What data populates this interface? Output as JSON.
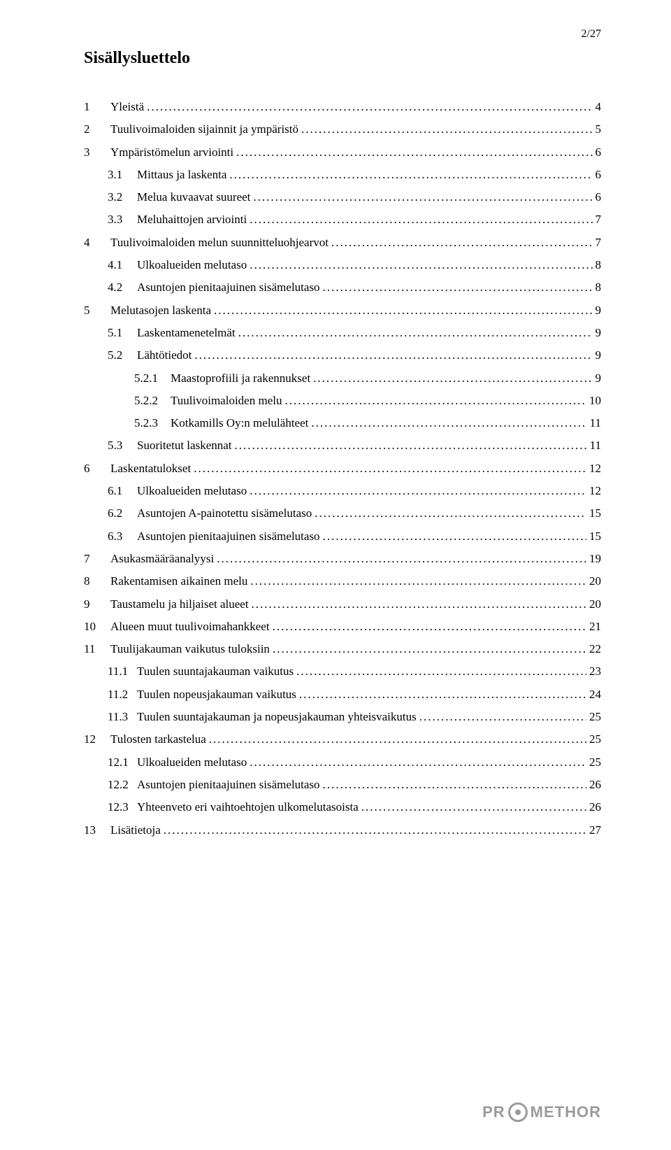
{
  "page_number": "2/27",
  "title": "Sisällysluettelo",
  "logo_text_left": "PR",
  "logo_text_right": "METHOR",
  "toc": [
    {
      "level": 1,
      "num": "1",
      "label": "Yleistä",
      "page": "4"
    },
    {
      "level": 1,
      "num": "2",
      "label": "Tuulivoimaloiden sijainnit ja ympäristö",
      "page": "5"
    },
    {
      "level": 1,
      "num": "3",
      "label": "Ympäristömelun arviointi",
      "page": "6"
    },
    {
      "level": 2,
      "num": "3.1",
      "label": "Mittaus ja laskenta",
      "page": "6"
    },
    {
      "level": 2,
      "num": "3.2",
      "label": "Melua kuvaavat suureet",
      "page": "6"
    },
    {
      "level": 2,
      "num": "3.3",
      "label": "Meluhaittojen arviointi",
      "page": "7"
    },
    {
      "level": 1,
      "num": "4",
      "label": "Tuulivoimaloiden melun suunnitteluohjearvot",
      "page": "7"
    },
    {
      "level": 2,
      "num": "4.1",
      "label": "Ulkoalueiden melutaso",
      "page": "8"
    },
    {
      "level": 2,
      "num": "4.2",
      "label": "Asuntojen pienitaajuinen sisämelutaso",
      "page": "8"
    },
    {
      "level": 1,
      "num": "5",
      "label": "Melutasojen laskenta",
      "page": "9"
    },
    {
      "level": 2,
      "num": "5.1",
      "label": "Laskentamenetelmät",
      "page": "9"
    },
    {
      "level": 2,
      "num": "5.2",
      "label": "Lähtötiedot",
      "page": "9"
    },
    {
      "level": 3,
      "num": "5.2.1",
      "label": "Maastoprofiili ja rakennukset",
      "page": "9"
    },
    {
      "level": 3,
      "num": "5.2.2",
      "label": "Tuulivoimaloiden melu",
      "page": "10"
    },
    {
      "level": 3,
      "num": "5.2.3",
      "label": "Kotkamills Oy:n melulähteet",
      "page": "11"
    },
    {
      "level": 2,
      "num": "5.3",
      "label": "Suoritetut laskennat",
      "page": "11"
    },
    {
      "level": 1,
      "num": "6",
      "label": "Laskentatulokset",
      "page": "12"
    },
    {
      "level": 2,
      "num": "6.1",
      "label": "Ulkoalueiden melutaso",
      "page": "12"
    },
    {
      "level": 2,
      "num": "6.2",
      "label": "Asuntojen A-painotettu sisämelutaso",
      "page": "15"
    },
    {
      "level": 2,
      "num": "6.3",
      "label": "Asuntojen pienitaajuinen sisämelutaso",
      "page": "15"
    },
    {
      "level": 1,
      "num": "7",
      "label": "Asukasmääräanalyysi",
      "page": "19"
    },
    {
      "level": 1,
      "num": "8",
      "label": "Rakentamisen aikainen melu",
      "page": "20"
    },
    {
      "level": 1,
      "num": "9",
      "label": "Taustamelu ja hiljaiset alueet",
      "page": "20"
    },
    {
      "level": 1,
      "num": "10",
      "label": "Alueen muut tuulivoimahankkeet",
      "page": "21"
    },
    {
      "level": 1,
      "num": "11",
      "label": "Tuulijakauman vaikutus tuloksiin",
      "page": "22"
    },
    {
      "level": 2,
      "num": "11.1",
      "label": "Tuulen suuntajakauman vaikutus",
      "page": "23"
    },
    {
      "level": 2,
      "num": "11.2",
      "label": "Tuulen nopeusjakauman vaikutus",
      "page": "24"
    },
    {
      "level": 2,
      "num": "11.3",
      "label": "Tuulen suuntajakauman ja nopeusjakauman yhteisvaikutus",
      "page": "25"
    },
    {
      "level": 1,
      "num": "12",
      "label": "Tulosten tarkastelua",
      "page": "25"
    },
    {
      "level": 2,
      "num": "12.1",
      "label": "Ulkoalueiden melutaso",
      "page": "25"
    },
    {
      "level": 2,
      "num": "12.2",
      "label": "Asuntojen pienitaajuinen sisämelutaso",
      "page": "26"
    },
    {
      "level": 2,
      "num": "12.3",
      "label": "Yhteenveto eri vaihtoehtojen ulkomelutasoista",
      "page": "26"
    },
    {
      "level": 1,
      "num": "13",
      "label": "Lisätietoja",
      "page": "27"
    }
  ]
}
